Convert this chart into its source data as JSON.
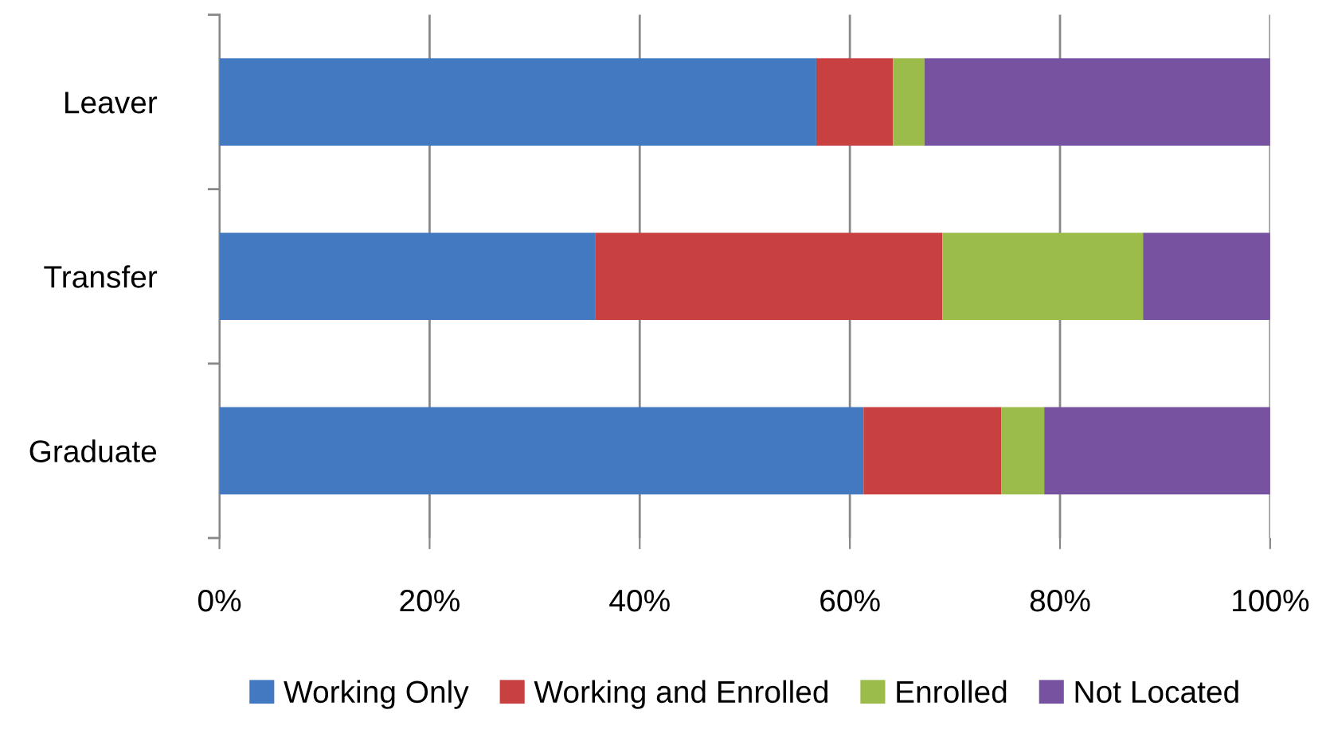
{
  "chart_data": {
    "type": "bar",
    "orientation": "horizontal",
    "stacked": true,
    "categories": [
      "Leaver",
      "Transfer",
      "Graduate"
    ],
    "series": [
      {
        "name": "Working Only",
        "color": "#4279c0",
        "values": [
          56.8,
          35.8,
          61.3
        ]
      },
      {
        "name": "Working and Enrolled",
        "color": "#c94040",
        "values": [
          7.3,
          33.0,
          13.1
        ]
      },
      {
        "name": "Enrolled",
        "color": "#9bbb4a",
        "values": [
          3.0,
          19.1,
          4.1
        ]
      },
      {
        "name": "Not Located",
        "color": "#7652a0",
        "values": [
          32.9,
          12.1,
          21.5
        ]
      }
    ],
    "xlim": [
      0,
      100
    ],
    "xticks": [
      {
        "value": 0,
        "label": "0%"
      },
      {
        "value": 20,
        "label": "20%"
      },
      {
        "value": 40,
        "label": "40%"
      },
      {
        "value": 60,
        "label": "60%"
      },
      {
        "value": 80,
        "label": "80%"
      },
      {
        "value": 100,
        "label": "100%"
      }
    ],
    "grid": "x",
    "legend": "bottom"
  }
}
